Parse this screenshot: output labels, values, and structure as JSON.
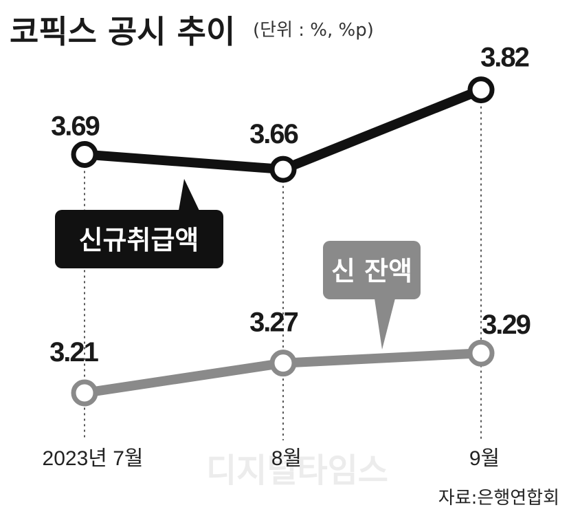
{
  "chart_data": {
    "type": "line",
    "title": "코픽스 공시 추이",
    "unit_note": "(단위 : %, %p)",
    "categories": [
      "2023년 7월",
      "8월",
      "9월"
    ],
    "series": [
      {
        "name": "신규취급액",
        "values": [
          3.69,
          3.66,
          3.82
        ],
        "color": "#111111"
      },
      {
        "name": "신 잔액",
        "values": [
          3.21,
          3.27,
          3.29
        ],
        "color": "#8a8a8a"
      }
    ],
    "value_labels": [
      [
        "3.69",
        "3.66",
        "3.82"
      ],
      [
        "3.21",
        "3.27",
        "3.29"
      ]
    ],
    "grid": false,
    "legend": "callout labels on lines",
    "source": "자료:은행연합회",
    "watermark": "디지털타임스"
  }
}
